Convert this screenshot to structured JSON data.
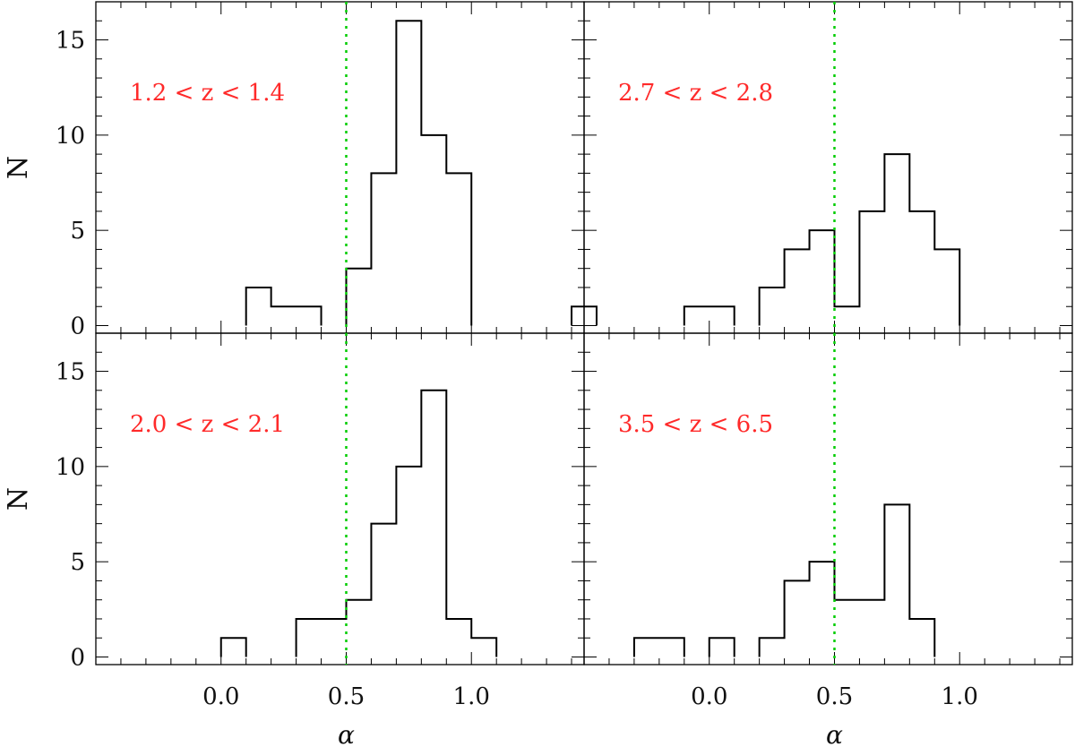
{
  "chart_data": [
    {
      "type": "histogram",
      "annotation": "1.2 < z < 1.4",
      "xlabel": "",
      "ylabel": "N",
      "xlim": [
        -0.5,
        1.45
      ],
      "ylim": [
        -0.4,
        17
      ],
      "yticks": [
        0,
        5,
        10,
        15
      ],
      "bin_width": 0.1,
      "bin_starts": [
        0.1,
        0.2,
        0.3,
        0.5,
        0.6,
        0.7,
        0.8,
        0.9,
        1.4
      ],
      "counts": [
        2,
        1,
        1,
        3,
        8,
        16,
        10,
        8,
        1
      ],
      "reference_line": 0.5,
      "reference_line_color": "#00cc00"
    },
    {
      "type": "histogram",
      "annotation": "2.7 < z < 2.8",
      "xlabel": "",
      "ylabel": "",
      "xlim": [
        -0.5,
        1.45
      ],
      "ylim": [
        -0.4,
        17
      ],
      "yticks": [
        0,
        5,
        10,
        15
      ],
      "bin_width": 0.1,
      "bin_starts": [
        -0.1,
        0.0,
        0.2,
        0.3,
        0.4,
        0.5,
        0.6,
        0.7,
        0.8,
        0.9
      ],
      "counts": [
        1,
        1,
        2,
        4,
        5,
        1,
        6,
        9,
        6,
        4
      ],
      "reference_line": 0.5,
      "reference_line_color": "#00cc00"
    },
    {
      "type": "histogram",
      "annotation": "2.0 < z < 2.1",
      "xlabel": "α",
      "ylabel": "N",
      "xlim": [
        -0.5,
        1.45
      ],
      "ylim": [
        -0.4,
        17
      ],
      "xticks": [
        0.0,
        0.5,
        1.0
      ],
      "xtick_labels": [
        "0.0",
        "0.5",
        "1.0"
      ],
      "yticks": [
        0,
        5,
        10,
        15
      ],
      "bin_width": 0.1,
      "bin_starts": [
        0.0,
        0.3,
        0.4,
        0.5,
        0.6,
        0.7,
        0.8,
        0.9,
        1.0
      ],
      "counts": [
        1,
        2,
        2,
        3,
        7,
        10,
        14,
        2,
        1
      ],
      "reference_line": 0.5,
      "reference_line_color": "#00cc00"
    },
    {
      "type": "histogram",
      "annotation": "3.5 < z < 6.5",
      "xlabel": "α",
      "ylabel": "",
      "xlim": [
        -0.5,
        1.45
      ],
      "ylim": [
        -0.4,
        17
      ],
      "xticks": [
        0.0,
        0.5,
        1.0
      ],
      "xtick_labels": [
        "0.0",
        "0.5",
        "1.0"
      ],
      "yticks": [
        0,
        5,
        10,
        15
      ],
      "bin_width": 0.1,
      "bin_starts": [
        -0.3,
        -0.2,
        0.0,
        0.2,
        0.3,
        0.4,
        0.5,
        0.6,
        0.7,
        0.8
      ],
      "counts": [
        1,
        1,
        1,
        1,
        4,
        5,
        3,
        3,
        8,
        2
      ],
      "reference_line": 0.5,
      "reference_line_color": "#00cc00"
    }
  ]
}
